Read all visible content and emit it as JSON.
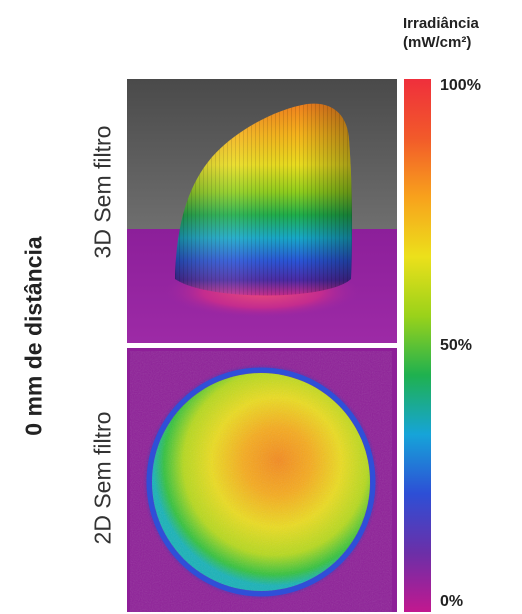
{
  "figure": {
    "side_label": "0 mm de distância",
    "panels": [
      {
        "label": "3D Sem filtro",
        "view": "3d"
      },
      {
        "label": "2D Sem filtro",
        "view": "2d"
      }
    ]
  },
  "legend": {
    "title_line1": "Irradiância",
    "title_line2": "(mW/cm²)",
    "ticks": {
      "max": "100%",
      "mid": "50%",
      "min": "0%"
    },
    "gradient_colors": [
      "#c2188f",
      "#6b2fa8",
      "#2d4fd6",
      "#16a4d8",
      "#1fb14f",
      "#9ad21a",
      "#ece01b",
      "#f8a21c",
      "#f25a2a",
      "#ef2f3c"
    ]
  }
}
